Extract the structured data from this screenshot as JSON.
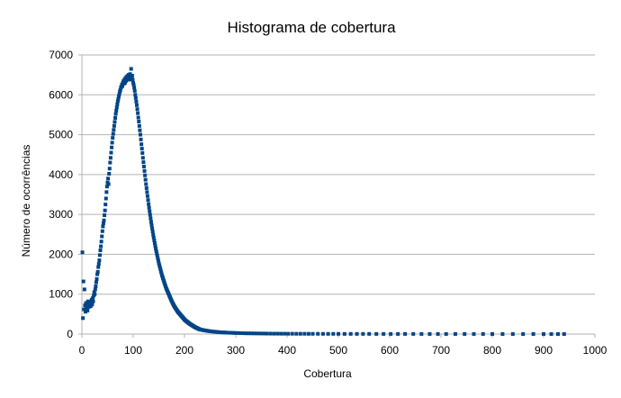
{
  "chart_data": {
    "type": "scatter",
    "title": "Histograma de cobertura",
    "xlabel": "Cobertura",
    "ylabel": "Número de ocorrências",
    "xlim": [
      0,
      1000
    ],
    "ylim": [
      0,
      7000
    ],
    "x_ticks": [
      0,
      100,
      200,
      300,
      400,
      500,
      600,
      700,
      800,
      900,
      1000
    ],
    "y_ticks": [
      0,
      1000,
      2000,
      3000,
      4000,
      5000,
      6000,
      7000
    ],
    "grid": "horizontal",
    "marker_color": "#004586",
    "series": [
      {
        "points": [
          [
            1,
            2050
          ],
          [
            2,
            400
          ],
          [
            3,
            1320
          ],
          [
            4,
            620
          ],
          [
            5,
            1120
          ],
          [
            6,
            720
          ],
          [
            7,
            560
          ],
          [
            8,
            780
          ],
          [
            9,
            640
          ],
          [
            10,
            700
          ],
          [
            11,
            590
          ],
          [
            12,
            820
          ],
          [
            13,
            680
          ],
          [
            14,
            740
          ],
          [
            15,
            690
          ],
          [
            16,
            800
          ],
          [
            17,
            700
          ],
          [
            18,
            760
          ],
          [
            19,
            860
          ],
          [
            20,
            740
          ],
          [
            21,
            900
          ],
          [
            22,
            820
          ],
          [
            23,
            960
          ],
          [
            24,
            1050
          ],
          [
            25,
            1000
          ],
          [
            26,
            1120
          ],
          [
            27,
            1200
          ],
          [
            28,
            1300
          ],
          [
            29,
            1380
          ],
          [
            30,
            1500
          ],
          [
            31,
            1560
          ],
          [
            32,
            1680
          ],
          [
            33,
            1760
          ],
          [
            34,
            1850
          ],
          [
            35,
            1980
          ],
          [
            36,
            2100
          ],
          [
            37,
            2200
          ],
          [
            38,
            2320
          ],
          [
            39,
            2450
          ],
          [
            40,
            2580
          ],
          [
            41,
            2700
          ],
          [
            42,
            2780
          ],
          [
            43,
            2850
          ],
          [
            44,
            2980
          ],
          [
            45,
            3100
          ],
          [
            46,
            3250
          ],
          [
            47,
            3400
          ],
          [
            48,
            3560
          ],
          [
            49,
            3700
          ],
          [
            50,
            3800
          ],
          [
            51,
            3900
          ],
          [
            52,
            3760
          ],
          [
            53,
            4020
          ],
          [
            54,
            4150
          ],
          [
            55,
            4300
          ],
          [
            56,
            4420
          ],
          [
            57,
            4550
          ],
          [
            58,
            4680
          ],
          [
            59,
            4800
          ],
          [
            60,
            4920
          ],
          [
            61,
            5020
          ],
          [
            62,
            5120
          ],
          [
            63,
            5220
          ],
          [
            64,
            5320
          ],
          [
            65,
            5420
          ],
          [
            66,
            5520
          ],
          [
            67,
            5600
          ],
          [
            68,
            5680
          ],
          [
            69,
            5760
          ],
          [
            70,
            5840
          ],
          [
            71,
            5900
          ],
          [
            72,
            5960
          ],
          [
            73,
            6020
          ],
          [
            74,
            6080
          ],
          [
            75,
            6120
          ],
          [
            76,
            6180
          ],
          [
            77,
            6200
          ],
          [
            78,
            6260
          ],
          [
            79,
            6220
          ],
          [
            80,
            6300
          ],
          [
            81,
            6340
          ],
          [
            82,
            6280
          ],
          [
            83,
            6380
          ],
          [
            84,
            6300
          ],
          [
            85,
            6420
          ],
          [
            86,
            6350
          ],
          [
            87,
            6450
          ],
          [
            88,
            6380
          ],
          [
            89,
            6470
          ],
          [
            90,
            6400
          ],
          [
            91,
            6500
          ],
          [
            92,
            6430
          ],
          [
            93,
            6380
          ],
          [
            94,
            6520
          ],
          [
            95,
            6450
          ],
          [
            96,
            6650
          ],
          [
            97,
            6420
          ],
          [
            98,
            6480
          ],
          [
            99,
            6380
          ],
          [
            100,
            6300
          ],
          [
            101,
            6250
          ],
          [
            102,
            6180
          ],
          [
            103,
            6100
          ],
          [
            104,
            6000
          ],
          [
            105,
            5920
          ],
          [
            106,
            5830
          ],
          [
            107,
            5740
          ],
          [
            108,
            5640
          ],
          [
            109,
            5540
          ],
          [
            110,
            5430
          ],
          [
            111,
            5330
          ],
          [
            112,
            5220
          ],
          [
            113,
            5110
          ],
          [
            114,
            5000
          ],
          [
            115,
            4880
          ],
          [
            116,
            4760
          ],
          [
            117,
            4650
          ],
          [
            118,
            4540
          ],
          [
            119,
            4420
          ],
          [
            120,
            4310
          ],
          [
            121,
            4200
          ],
          [
            122,
            4090
          ],
          [
            123,
            3980
          ],
          [
            124,
            3870
          ],
          [
            125,
            3760
          ],
          [
            126,
            3660
          ],
          [
            127,
            3560
          ],
          [
            128,
            3460
          ],
          [
            129,
            3360
          ],
          [
            130,
            3260
          ],
          [
            131,
            3170
          ],
          [
            132,
            3080
          ],
          [
            133,
            2990
          ],
          [
            134,
            2900
          ],
          [
            135,
            2810
          ],
          [
            136,
            2730
          ],
          [
            137,
            2650
          ],
          [
            138,
            2570
          ],
          [
            139,
            2490
          ],
          [
            140,
            2420
          ],
          [
            141,
            2350
          ],
          [
            142,
            2280
          ],
          [
            143,
            2210
          ],
          [
            144,
            2140
          ],
          [
            145,
            2080
          ],
          [
            146,
            2020
          ],
          [
            147,
            1960
          ],
          [
            148,
            1900
          ],
          [
            149,
            1840
          ],
          [
            150,
            1780
          ],
          [
            151,
            1730
          ],
          [
            152,
            1680
          ],
          [
            153,
            1630
          ],
          [
            154,
            1580
          ],
          [
            155,
            1530
          ],
          [
            156,
            1480
          ],
          [
            157,
            1440
          ],
          [
            158,
            1400
          ],
          [
            159,
            1360
          ],
          [
            160,
            1320
          ],
          [
            161,
            1280
          ],
          [
            162,
            1240
          ],
          [
            163,
            1200
          ],
          [
            164,
            1160
          ],
          [
            165,
            1130
          ],
          [
            166,
            1100
          ],
          [
            167,
            1070
          ],
          [
            168,
            1040
          ],
          [
            169,
            1010
          ],
          [
            170,
            980
          ],
          [
            171,
            950
          ],
          [
            172,
            920
          ],
          [
            173,
            890
          ],
          [
            174,
            860
          ],
          [
            175,
            830
          ],
          [
            176,
            800
          ],
          [
            177,
            775
          ],
          [
            178,
            750
          ],
          [
            179,
            725
          ],
          [
            180,
            700
          ],
          [
            181,
            680
          ],
          [
            182,
            660
          ],
          [
            183,
            640
          ],
          [
            184,
            620
          ],
          [
            185,
            600
          ],
          [
            186,
            580
          ],
          [
            187,
            560
          ],
          [
            188,
            545
          ],
          [
            189,
            530
          ],
          [
            190,
            515
          ],
          [
            191,
            500
          ],
          [
            192,
            485
          ],
          [
            193,
            470
          ],
          [
            194,
            455
          ],
          [
            195,
            440
          ],
          [
            196,
            425
          ],
          [
            197,
            410
          ],
          [
            198,
            395
          ],
          [
            199,
            380
          ],
          [
            200,
            365
          ],
          [
            201,
            350
          ],
          [
            202,
            340
          ],
          [
            203,
            330
          ],
          [
            204,
            320
          ],
          [
            205,
            310
          ],
          [
            206,
            300
          ],
          [
            207,
            290
          ],
          [
            208,
            280
          ],
          [
            209,
            270
          ],
          [
            210,
            260
          ],
          [
            211,
            250
          ],
          [
            212,
            242
          ],
          [
            213,
            234
          ],
          [
            214,
            226
          ],
          [
            215,
            218
          ],
          [
            216,
            210
          ],
          [
            217,
            202
          ],
          [
            218,
            194
          ],
          [
            219,
            186
          ],
          [
            220,
            178
          ],
          [
            221,
            170
          ],
          [
            222,
            164
          ],
          [
            223,
            158
          ],
          [
            224,
            152
          ],
          [
            225,
            146
          ],
          [
            226,
            140
          ],
          [
            227,
            134
          ],
          [
            228,
            128
          ],
          [
            229,
            122
          ],
          [
            230,
            116
          ],
          [
            232,
            112
          ],
          [
            234,
            106
          ],
          [
            236,
            100
          ],
          [
            238,
            95
          ],
          [
            240,
            90
          ],
          [
            242,
            86
          ],
          [
            244,
            82
          ],
          [
            246,
            78
          ],
          [
            248,
            74
          ],
          [
            250,
            70
          ],
          [
            253,
            66
          ],
          [
            256,
            62
          ],
          [
            259,
            58
          ],
          [
            262,
            54
          ],
          [
            265,
            51
          ],
          [
            268,
            48
          ],
          [
            271,
            45
          ],
          [
            274,
            42
          ],
          [
            277,
            40
          ],
          [
            280,
            38
          ],
          [
            284,
            35
          ],
          [
            288,
            33
          ],
          [
            292,
            31
          ],
          [
            296,
            29
          ],
          [
            300,
            27
          ],
          [
            305,
            25
          ],
          [
            310,
            23
          ],
          [
            315,
            21
          ],
          [
            320,
            19
          ],
          [
            325,
            18
          ],
          [
            330,
            17
          ],
          [
            336,
            16
          ],
          [
            342,
            15
          ],
          [
            348,
            14
          ],
          [
            354,
            13
          ],
          [
            360,
            12
          ],
          [
            367,
            11
          ],
          [
            374,
            10
          ],
          [
            381,
            10
          ],
          [
            388,
            9
          ],
          [
            395,
            9
          ],
          [
            402,
            8
          ],
          [
            410,
            8
          ],
          [
            418,
            7
          ],
          [
            426,
            7
          ],
          [
            434,
            7
          ],
          [
            442,
            6
          ],
          [
            450,
            6
          ],
          [
            460,
            6
          ],
          [
            470,
            5
          ],
          [
            480,
            5
          ],
          [
            490,
            5
          ],
          [
            500,
            5
          ],
          [
            512,
            4
          ],
          [
            524,
            4
          ],
          [
            536,
            4
          ],
          [
            548,
            4
          ],
          [
            560,
            4
          ],
          [
            574,
            3
          ],
          [
            588,
            3
          ],
          [
            602,
            3
          ],
          [
            616,
            3
          ],
          [
            630,
            3
          ],
          [
            646,
            3
          ],
          [
            662,
            2
          ],
          [
            678,
            2
          ],
          [
            694,
            2
          ],
          [
            710,
            2
          ],
          [
            728,
            2
          ],
          [
            746,
            2
          ],
          [
            764,
            2
          ],
          [
            782,
            2
          ],
          [
            800,
            1
          ],
          [
            820,
            1
          ],
          [
            840,
            1
          ],
          [
            860,
            1
          ],
          [
            880,
            1
          ],
          [
            900,
            1
          ],
          [
            915,
            1
          ],
          [
            928,
            1
          ],
          [
            940,
            1
          ]
        ]
      }
    ]
  }
}
